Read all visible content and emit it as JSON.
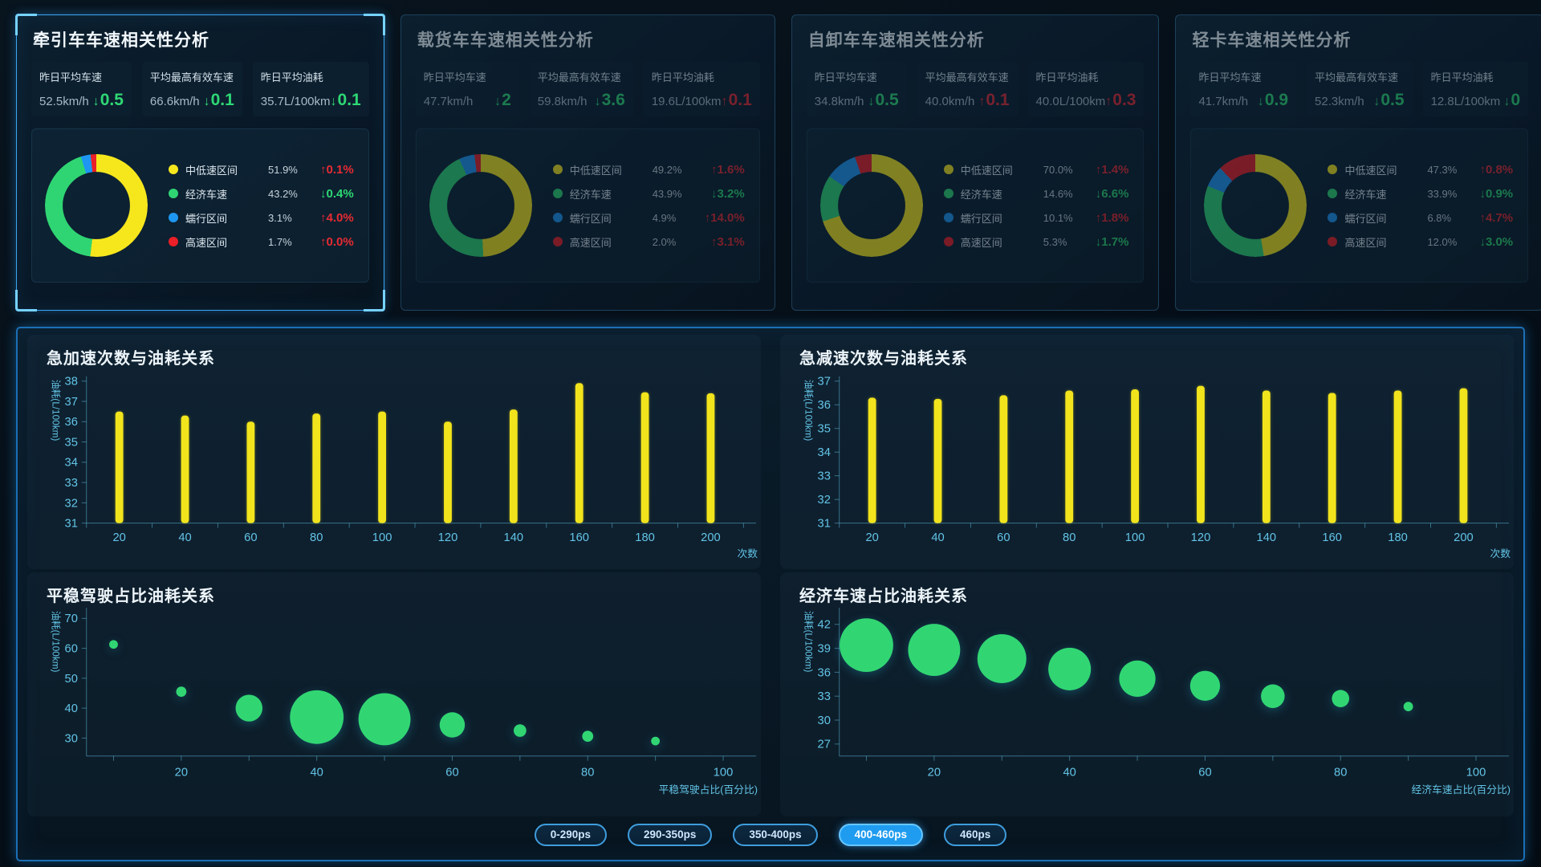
{
  "theme": {
    "accent": "#1e9dff",
    "bar_color": "#f2e41c",
    "bubble_color": "#31d673",
    "axis_line": "rgba(98,196,230,0.5)",
    "axis_text": "#62c4e6",
    "delta_good_green": "#2ed874",
    "delta_bad_red": "#e62b33",
    "series_colors": [
      "#f6e71d",
      "#2fd573",
      "#1e97f2",
      "#ea1f27"
    ]
  },
  "cards": [
    {
      "title": "牵引车车速相关性分析",
      "highlighted": true,
      "stats": [
        {
          "label": "昨日平均车速",
          "value": "52.5km/h",
          "delta": "0.5",
          "arrow": "down",
          "tone": "good"
        },
        {
          "label": "平均最高有效车速",
          "value": "66.6km/h",
          "delta": "0.1",
          "arrow": "down",
          "tone": "good"
        },
        {
          "label": "昨日平均油耗",
          "value": "35.7L/100km",
          "delta": "0.1",
          "arrow": "down",
          "tone": "good"
        }
      ],
      "legend": [
        {
          "label": "中低速区间",
          "pct": "51.9%",
          "delta": "0.1%",
          "arrow": "up",
          "tone": "bad"
        },
        {
          "label": "经济车速",
          "pct": "43.2%",
          "delta": "0.4%",
          "arrow": "down",
          "tone": "good"
        },
        {
          "label": "蠕行区间",
          "pct": "3.1%",
          "delta": "4.0%",
          "arrow": "up",
          "tone": "bad"
        },
        {
          "label": "高速区间",
          "pct": "1.7%",
          "delta": "0.0%",
          "arrow": "up",
          "tone": "bad"
        }
      ]
    },
    {
      "title": "载货车车速相关性分析",
      "highlighted": false,
      "stats": [
        {
          "label": "昨日平均车速",
          "value": "47.7km/h",
          "delta": "2",
          "arrow": "down",
          "tone": "good"
        },
        {
          "label": "平均最高有效车速",
          "value": "59.8km/h",
          "delta": "3.6",
          "arrow": "down",
          "tone": "good"
        },
        {
          "label": "昨日平均油耗",
          "value": "19.6L/100km",
          "delta": "0.1",
          "arrow": "up",
          "tone": "bad"
        }
      ],
      "legend": [
        {
          "label": "中低速区间",
          "pct": "49.2%",
          "delta": "1.6%",
          "arrow": "up",
          "tone": "bad"
        },
        {
          "label": "经济车速",
          "pct": "43.9%",
          "delta": "3.2%",
          "arrow": "down",
          "tone": "good"
        },
        {
          "label": "蠕行区间",
          "pct": "4.9%",
          "delta": "14.0%",
          "arrow": "up",
          "tone": "bad"
        },
        {
          "label": "高速区间",
          "pct": "2.0%",
          "delta": "3.1%",
          "arrow": "up",
          "tone": "bad"
        }
      ]
    },
    {
      "title": "自卸车车速相关性分析",
      "highlighted": false,
      "stats": [
        {
          "label": "昨日平均车速",
          "value": "34.8km/h",
          "delta": "0.5",
          "arrow": "down",
          "tone": "good"
        },
        {
          "label": "平均最高有效车速",
          "value": "40.0km/h",
          "delta": "0.1",
          "arrow": "up",
          "tone": "bad"
        },
        {
          "label": "昨日平均油耗",
          "value": "40.0L/100km",
          "delta": "0.3",
          "arrow": "up",
          "tone": "bad"
        }
      ],
      "legend": [
        {
          "label": "中低速区间",
          "pct": "70.0%",
          "delta": "1.4%",
          "arrow": "up",
          "tone": "bad"
        },
        {
          "label": "经济车速",
          "pct": "14.6%",
          "delta": "6.6%",
          "arrow": "down",
          "tone": "good"
        },
        {
          "label": "蠕行区间",
          "pct": "10.1%",
          "delta": "1.8%",
          "arrow": "up",
          "tone": "bad"
        },
        {
          "label": "高速区间",
          "pct": "5.3%",
          "delta": "1.7%",
          "arrow": "down",
          "tone": "good"
        }
      ]
    },
    {
      "title": "轻卡车速相关性分析",
      "highlighted": false,
      "stats": [
        {
          "label": "昨日平均车速",
          "value": "41.7km/h",
          "delta": "0.9",
          "arrow": "down",
          "tone": "good"
        },
        {
          "label": "平均最高有效车速",
          "value": "52.3km/h",
          "delta": "0.5",
          "arrow": "down",
          "tone": "good"
        },
        {
          "label": "昨日平均油耗",
          "value": "12.8L/100km",
          "delta": "0",
          "arrow": "down",
          "tone": "good"
        }
      ],
      "legend": [
        {
          "label": "中低速区间",
          "pct": "47.3%",
          "delta": "0.8%",
          "arrow": "up",
          "tone": "bad"
        },
        {
          "label": "经济车速",
          "pct": "33.9%",
          "delta": "0.9%",
          "arrow": "down",
          "tone": "good"
        },
        {
          "label": "蠕行区间",
          "pct": "6.8%",
          "delta": "4.7%",
          "arrow": "up",
          "tone": "bad"
        },
        {
          "label": "高速区间",
          "pct": "12.0%",
          "delta": "3.0%",
          "arrow": "down",
          "tone": "good"
        }
      ]
    }
  ],
  "chart_data": [
    {
      "type": "pie",
      "title": "牵引车车速区间占比",
      "categories": [
        "中低速区间",
        "经济车速",
        "蠕行区间",
        "高速区间"
      ],
      "values": [
        51.9,
        43.2,
        3.1,
        1.7
      ]
    },
    {
      "type": "pie",
      "title": "载货车车速区间占比",
      "categories": [
        "中低速区间",
        "经济车速",
        "蠕行区间",
        "高速区间"
      ],
      "values": [
        49.2,
        43.9,
        4.9,
        2.0
      ]
    },
    {
      "type": "pie",
      "title": "自卸车车速区间占比",
      "categories": [
        "中低速区间",
        "经济车速",
        "蠕行区间",
        "高速区间"
      ],
      "values": [
        70.0,
        14.6,
        10.1,
        5.3
      ]
    },
    {
      "type": "pie",
      "title": "轻卡车速区间占比",
      "categories": [
        "中低速区间",
        "经济车速",
        "蠕行区间",
        "高速区间"
      ],
      "values": [
        47.3,
        33.9,
        6.8,
        12.0
      ]
    },
    {
      "type": "bar",
      "title": "急加速次数与油耗关系",
      "ylabel": "油耗(L/100km)",
      "xlabel": "次数",
      "ylim": [
        31,
        38
      ],
      "yticks": [
        31,
        32,
        33,
        34,
        35,
        36,
        37,
        38
      ],
      "categories": [
        "20",
        "40",
        "60",
        "80",
        "100",
        "120",
        "140",
        "160",
        "180",
        "200"
      ],
      "values": [
        36.5,
        36.3,
        36.0,
        36.4,
        36.5,
        36.0,
        36.6,
        37.9,
        37.45,
        37.4
      ]
    },
    {
      "type": "bar",
      "title": "急减速次数与油耗关系",
      "ylabel": "油耗(L/100km)",
      "xlabel": "次数",
      "ylim": [
        31,
        37
      ],
      "yticks": [
        31,
        32,
        33,
        34,
        35,
        36,
        37
      ],
      "categories": [
        "20",
        "40",
        "60",
        "80",
        "100",
        "120",
        "140",
        "160",
        "180",
        "200"
      ],
      "values": [
        36.3,
        36.25,
        36.4,
        36.6,
        36.65,
        36.8,
        36.6,
        36.5,
        36.6,
        36.7
      ]
    },
    {
      "type": "scatter",
      "title": "平稳驾驶占比油耗关系",
      "ylabel": "油耗(L/100km)",
      "xlabel": "平稳驾驶占比(百分比)",
      "ylim": [
        24,
        72
      ],
      "yticks": [
        30,
        40,
        50,
        60,
        70
      ],
      "xlim": [
        6,
        103
      ],
      "xticks": [
        20,
        40,
        60,
        80,
        100
      ],
      "points": [
        [
          10,
          61.3,
          5.5
        ],
        [
          20,
          45.5,
          6.5
        ],
        [
          30,
          40,
          17
        ],
        [
          40,
          37,
          34
        ],
        [
          50,
          36.3,
          33
        ],
        [
          60,
          34.4,
          16
        ],
        [
          70,
          32.5,
          8
        ],
        [
          80,
          30.6,
          7
        ],
        [
          90,
          29,
          5.5
        ]
      ]
    },
    {
      "type": "scatter",
      "title": "经济车速占比油耗关系",
      "ylabel": "油耗(L/100km)",
      "xlabel": "经济车速占比(百分比)",
      "ylim": [
        25.5,
        43.5
      ],
      "yticks": [
        27,
        30,
        33,
        36,
        39,
        42
      ],
      "xlim": [
        6,
        103
      ],
      "xticks": [
        20,
        40,
        60,
        80,
        100
      ],
      "points": [
        [
          10,
          39.4,
          34
        ],
        [
          20,
          38.8,
          33
        ],
        [
          30,
          37.7,
          31
        ],
        [
          40,
          36.4,
          27
        ],
        [
          50,
          35.2,
          23
        ],
        [
          60,
          34.3,
          19
        ],
        [
          70,
          33.0,
          15
        ],
        [
          80,
          32.7,
          11
        ],
        [
          90,
          31.7,
          6
        ]
      ]
    }
  ],
  "hp_filter": {
    "options": [
      "0-290ps",
      "290-350ps",
      "350-400ps",
      "400-460ps",
      "460ps"
    ],
    "active": "400-460ps"
  }
}
